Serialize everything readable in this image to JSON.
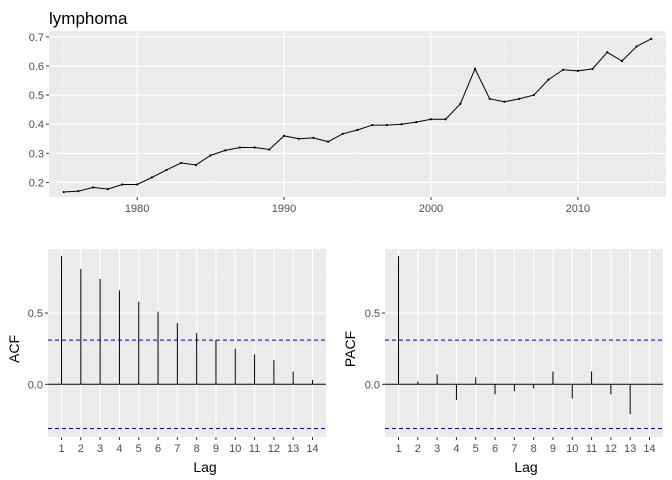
{
  "colors": {
    "panel_background": "#ebebeb",
    "grid_major": "#ffffff",
    "grid_minor": "#f5f5f5",
    "series_line": "#000000",
    "confidence_line": "#0000cc",
    "tick_text": "#4d4d4d"
  },
  "chart_data": [
    {
      "type": "line",
      "title": "lymphoma",
      "xlabel": "",
      "ylabel": "",
      "xlim": [
        1974,
        2016
      ],
      "ylim": [
        0.15,
        0.72
      ],
      "x_ticks": [
        1980,
        1990,
        2000,
        2010
      ],
      "x_tick_labels": [
        "1980",
        "1990",
        "2000",
        "2010"
      ],
      "y_ticks": [
        0.2,
        0.3,
        0.4,
        0.5,
        0.6,
        0.7
      ],
      "y_tick_labels": [
        "0.2",
        "0.3",
        "0.4",
        "0.5",
        "0.6",
        "0.7"
      ],
      "grid": true,
      "legend": "none",
      "series": [
        {
          "x": [
            1975,
            1976,
            1977,
            1978,
            1979,
            1980,
            1981,
            1982,
            1983,
            1984,
            1985,
            1986,
            1987,
            1988,
            1989,
            1990,
            1991,
            1992,
            1993,
            1994,
            1995,
            1996,
            1997,
            1998,
            1999,
            2000,
            2001,
            2002,
            2003,
            2004,
            2005,
            2006,
            2007,
            2008,
            2009,
            2010,
            2011,
            2012,
            2013,
            2014,
            2015
          ],
          "values": [
            0.167,
            0.17,
            0.183,
            0.177,
            0.193,
            0.193,
            0.217,
            0.243,
            0.267,
            0.26,
            0.293,
            0.31,
            0.32,
            0.32,
            0.313,
            0.36,
            0.35,
            0.353,
            0.34,
            0.367,
            0.38,
            0.397,
            0.397,
            0.4,
            0.407,
            0.417,
            0.417,
            0.47,
            0.59,
            0.487,
            0.477,
            0.487,
            0.5,
            0.553,
            0.587,
            0.583,
            0.59,
            0.647,
            0.617,
            0.667,
            0.693
          ]
        }
      ]
    },
    {
      "type": "bar",
      "title": "",
      "xlabel": "Lag",
      "ylabel": "ACF",
      "xlim": [
        0.3,
        14.7
      ],
      "ylim": [
        -0.37,
        0.95
      ],
      "categories": [
        "1",
        "2",
        "3",
        "4",
        "5",
        "6",
        "7",
        "8",
        "9",
        "10",
        "11",
        "12",
        "13",
        "14"
      ],
      "values": [
        0.9,
        0.81,
        0.74,
        0.66,
        0.58,
        0.51,
        0.43,
        0.36,
        0.31,
        0.25,
        0.21,
        0.17,
        0.09,
        0.03
      ],
      "y_ticks": [
        0.0,
        0.5
      ],
      "y_tick_labels": [
        "0.0",
        "0.5"
      ],
      "confidence_bound": 0.31,
      "grid": true,
      "legend": "none"
    },
    {
      "type": "bar",
      "title": "",
      "xlabel": "Lag",
      "ylabel": "PACF",
      "xlim": [
        0.3,
        14.7
      ],
      "ylim": [
        -0.37,
        0.95
      ],
      "categories": [
        "1",
        "2",
        "3",
        "4",
        "5",
        "6",
        "7",
        "8",
        "9",
        "10",
        "11",
        "12",
        "13",
        "14"
      ],
      "values": [
        0.9,
        0.02,
        0.07,
        -0.11,
        0.05,
        -0.07,
        -0.05,
        -0.03,
        0.09,
        -0.1,
        0.09,
        -0.07,
        -0.21,
        0.0
      ],
      "y_ticks": [
        0.0,
        0.5
      ],
      "y_tick_labels": [
        "0.0",
        "0.5"
      ],
      "confidence_bound": 0.31,
      "grid": true,
      "legend": "none"
    }
  ]
}
